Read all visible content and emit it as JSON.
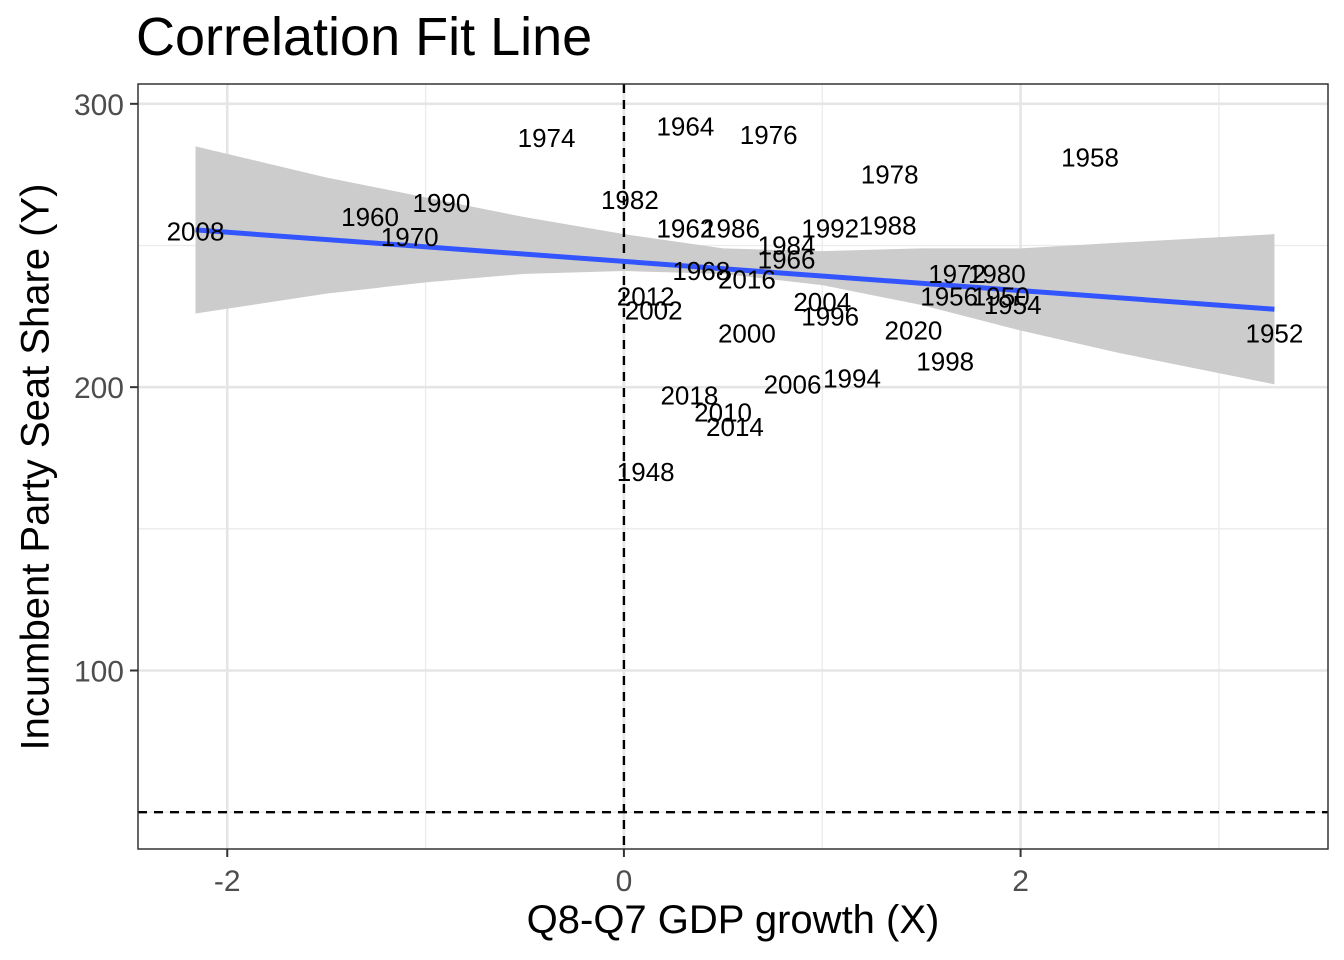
{
  "chart_data": {
    "type": "scatter",
    "title": "Correlation Fit Line",
    "xlabel": "Q8-Q7 GDP growth (X)",
    "ylabel": "Incumbent Party Seat Share (Y)",
    "xlim": [
      -2.45,
      3.55
    ],
    "ylim": [
      37,
      307
    ],
    "x_ticks": [
      -2,
      0,
      2
    ],
    "x_tick_labels": [
      "-2",
      "0",
      "2"
    ],
    "y_ticks": [
      100,
      200,
      300
    ],
    "y_tick_labels": [
      "100",
      "200",
      "300"
    ],
    "grid": true,
    "reference_lines": {
      "vertical_x": 0,
      "horizontal_y": 50,
      "style": "dashed"
    },
    "points": [
      {
        "label": "2008",
        "x": -2.16,
        "y": 255
      },
      {
        "label": "1960",
        "x": -1.28,
        "y": 260
      },
      {
        "label": "1990",
        "x": -0.92,
        "y": 265
      },
      {
        "label": "1970",
        "x": -1.08,
        "y": 253
      },
      {
        "label": "1974",
        "x": -0.39,
        "y": 288
      },
      {
        "label": "1964",
        "x": 0.31,
        "y": 292
      },
      {
        "label": "1976",
        "x": 0.73,
        "y": 289
      },
      {
        "label": "1982",
        "x": 0.03,
        "y": 266
      },
      {
        "label": "1962",
        "x": 0.31,
        "y": 256
      },
      {
        "label": "1986",
        "x": 0.54,
        "y": 256
      },
      {
        "label": "1984",
        "x": 0.82,
        "y": 250
      },
      {
        "label": "1966",
        "x": 0.82,
        "y": 245
      },
      {
        "label": "1992",
        "x": 1.04,
        "y": 256
      },
      {
        "label": "1988",
        "x": 1.33,
        "y": 257
      },
      {
        "label": "1978",
        "x": 1.34,
        "y": 275
      },
      {
        "label": "1958",
        "x": 2.35,
        "y": 281
      },
      {
        "label": "1968",
        "x": 0.39,
        "y": 241
      },
      {
        "label": "2016",
        "x": 0.62,
        "y": 238
      },
      {
        "label": "2012",
        "x": 0.11,
        "y": 232
      },
      {
        "label": "2002",
        "x": 0.15,
        "y": 227
      },
      {
        "label": "2000",
        "x": 0.62,
        "y": 219
      },
      {
        "label": "2004",
        "x": 1.0,
        "y": 230
      },
      {
        "label": "1996",
        "x": 1.04,
        "y": 225
      },
      {
        "label": "2020",
        "x": 1.46,
        "y": 220
      },
      {
        "label": "1972",
        "x": 1.68,
        "y": 240
      },
      {
        "label": "1980",
        "x": 1.88,
        "y": 240
      },
      {
        "label": "1956",
        "x": 1.64,
        "y": 232
      },
      {
        "label": "1950",
        "x": 1.9,
        "y": 232
      },
      {
        "label": "1954",
        "x": 1.96,
        "y": 229
      },
      {
        "label": "1998",
        "x": 1.62,
        "y": 209
      },
      {
        "label": "1952",
        "x": 3.28,
        "y": 219
      },
      {
        "label": "2006",
        "x": 0.85,
        "y": 201
      },
      {
        "label": "1994",
        "x": 1.15,
        "y": 203
      },
      {
        "label": "2018",
        "x": 0.33,
        "y": 197
      },
      {
        "label": "2010",
        "x": 0.5,
        "y": 191
      },
      {
        "label": "2014",
        "x": 0.56,
        "y": 186
      },
      {
        "label": "1948",
        "x": 0.11,
        "y": 170
      }
    ],
    "fit_line": {
      "type": "linear",
      "color": "#3355FF",
      "x": [
        -2.16,
        3.28
      ],
      "y": [
        255.5,
        227.5
      ],
      "band_color": "#CCCCCC",
      "band_x": [
        -2.16,
        -1.5,
        -1.0,
        -0.5,
        0.0,
        0.5,
        1.0,
        1.5,
        2.0,
        2.5,
        3.28
      ],
      "band_lower": [
        226,
        233,
        237,
        240,
        241,
        240,
        236,
        229,
        220,
        212,
        201
      ],
      "band_upper": [
        285,
        274,
        267,
        260,
        254,
        249,
        248,
        249,
        249,
        251,
        254
      ]
    }
  }
}
